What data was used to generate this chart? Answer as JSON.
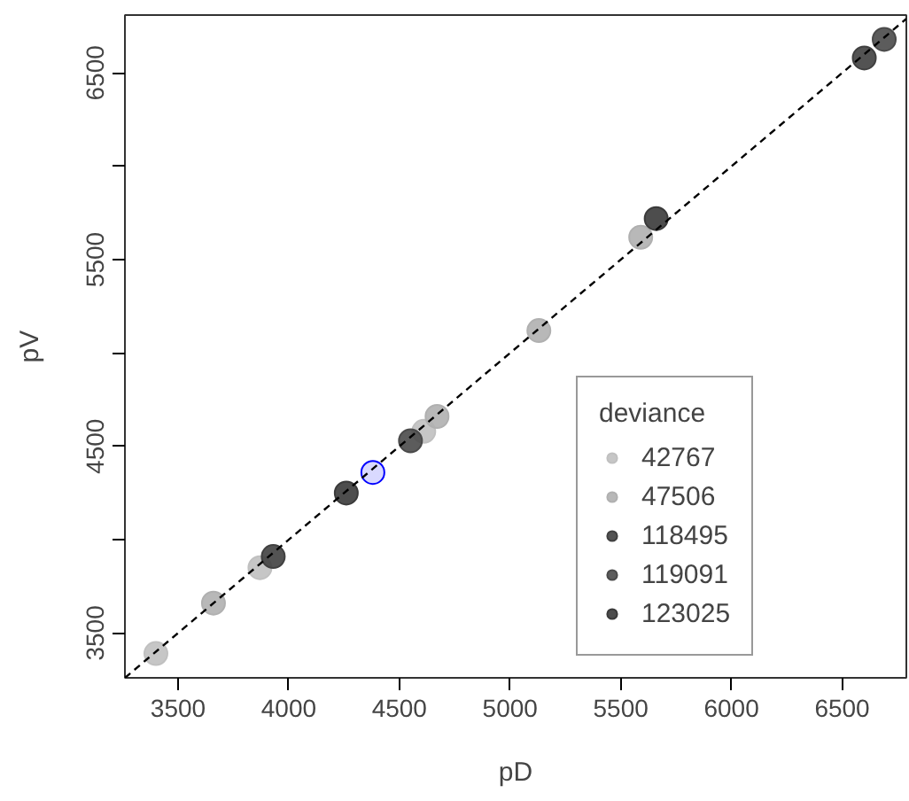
{
  "chart_data": {
    "type": "scatter",
    "xlabel": "pD",
    "ylabel": "pV",
    "legend_title": "deviance",
    "legend": "bottom right",
    "grid": false,
    "marker": "circle",
    "xlim": [
      3260,
      6790
    ],
    "ylim": [
      3260,
      6810
    ],
    "xticks": [
      3500,
      4000,
      4500,
      5000,
      5500,
      6000,
      6500
    ],
    "yticks": [
      3500,
      4500,
      5500,
      6500,
      {
        "value": 4000,
        "label": null
      },
      {
        "value": 5000,
        "label": null
      },
      {
        "value": 6000,
        "label": null
      }
    ],
    "series": [
      {
        "name": "42767",
        "color": "#c0c0c0",
        "x": [
          3400,
          3870,
          4610
        ],
        "values": [
          3390,
          3850,
          4580
        ]
      },
      {
        "name": "47506",
        "color": "#b0b0b0",
        "x": [
          3660,
          4670,
          5130,
          5590
        ],
        "values": [
          3660,
          4660,
          5120,
          5620
        ]
      },
      {
        "name": "118495",
        "color": "#404040",
        "x": [
          3930,
          6600
        ],
        "values": [
          3910,
          6580
        ]
      },
      {
        "name": "119091",
        "color": "#4a4a4a",
        "x": [
          4550,
          6690
        ],
        "values": [
          4530,
          6680
        ]
      },
      {
        "name": "123025",
        "color": "#3a3a3a",
        "x": [
          4260,
          5660
        ],
        "values": [
          4250,
          5720
        ]
      },
      {
        "color": "#0000ff",
        "x": [
          4380
        ],
        "values": [
          4360
        ]
      },
      {
        "type": "line",
        "marker": "none",
        "color": "#000000",
        "line_style": "dashed",
        "x": [
          3260,
          6790
        ],
        "values": [
          3260,
          6790
        ]
      }
    ]
  }
}
